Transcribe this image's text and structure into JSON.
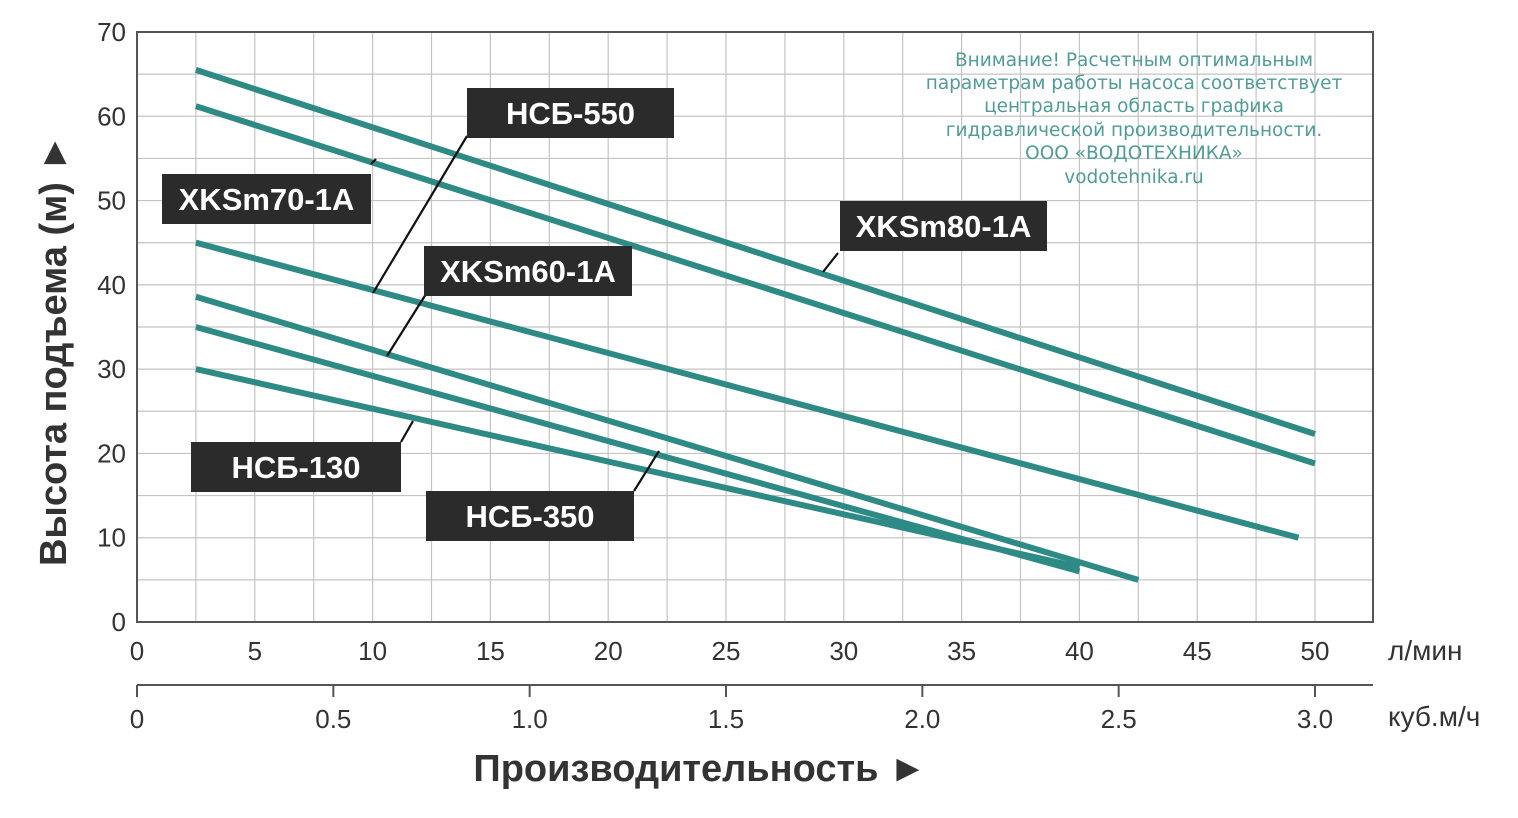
{
  "chart_data": {
    "type": "line",
    "title": "",
    "ylabel": "Высота подъема (м) ►",
    "xlabel": "Производительность ►",
    "x_unit_primary": "л/мин",
    "x_unit_secondary": "куб.м/ч",
    "xlim": [
      0,
      52
    ],
    "ylim": [
      0,
      70
    ],
    "x_ticks": [
      "0",
      "5",
      "10",
      "15",
      "20",
      "25",
      "30",
      "35",
      "40",
      "45",
      "50"
    ],
    "x2_ticks": [
      "0",
      "0.5",
      "1.0",
      "1.5",
      "2.0",
      "2.5",
      "3.0"
    ],
    "y_ticks": [
      "0",
      "10",
      "20",
      "30",
      "40",
      "50",
      "60",
      "70"
    ],
    "grid": true,
    "line_color": "#2e8a84",
    "label_bg_color": "#2b2b2b",
    "note_color": "#4f9c98",
    "series": [
      {
        "name": "XKSm80-1A",
        "x": [
          2.5,
          50
        ],
        "y": [
          65.5,
          22.3
        ]
      },
      {
        "name": "HCБ-550",
        "x": [
          2.5,
          50
        ],
        "y": [
          61.2,
          18.8
        ]
      },
      {
        "name": "XKSm60-1A",
        "x": [
          2.5,
          49.3
        ],
        "y": [
          45,
          10
        ]
      },
      {
        "name": "XKSm70-1A",
        "x": [
          2.5,
          42.5
        ],
        "y": [
          38.6,
          5
        ]
      },
      {
        "name": "HCБ-350",
        "x": [
          2.5,
          40
        ],
        "y": [
          35,
          6
        ]
      },
      {
        "name": "HCБ-130",
        "x": [
          2.5,
          40
        ],
        "y": [
          30,
          6.5
        ]
      }
    ],
    "annotations": [
      "Внимание! Расчетным оптимальным",
      "параметрам работы насоса соответствует",
      "центральная область графика",
      "гидравлической производительности.",
      "ООО «ВОДОТЕХНИКА»",
      "vodotehnika.ru"
    ]
  }
}
